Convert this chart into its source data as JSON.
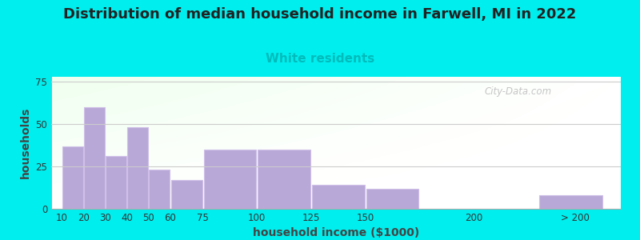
{
  "title": "Distribution of median household income in Farwell, MI in 2022",
  "subtitle": "White residents",
  "xlabel": "household income ($1000)",
  "ylabel": "households",
  "title_fontsize": 13,
  "subtitle_fontsize": 11,
  "subtitle_color": "#00bbbb",
  "background_color": "#00eeee",
  "bar_color": "#b8a8d8",
  "bar_edge_color": "#d0c0e8",
  "categories": [
    "10",
    "20",
    "30",
    "40",
    "50",
    "60",
    "75",
    "100",
    "125",
    "150",
    "200",
    "> 200"
  ],
  "values": [
    37,
    60,
    31,
    48,
    23,
    17,
    35,
    35,
    14,
    12,
    0,
    8
  ],
  "ylim": [
    0,
    78
  ],
  "yticks": [
    0,
    25,
    50,
    75
  ],
  "watermark": "City-Data.com",
  "bin_lefts": [
    10,
    20,
    30,
    40,
    50,
    60,
    75,
    100,
    125,
    150,
    200,
    230
  ],
  "bin_widths": [
    10,
    10,
    10,
    10,
    10,
    15,
    25,
    25,
    25,
    25,
    5,
    30
  ],
  "xlim_left": 5,
  "xlim_right": 268,
  "tick_positions": [
    10,
    20,
    30,
    40,
    50,
    60,
    75,
    100,
    125,
    150,
    200,
    247
  ],
  "tick_labels": [
    "10",
    "20",
    "30",
    "40",
    "50",
    "60",
    "75",
    "100",
    "125",
    "150",
    "200",
    "> 200"
  ]
}
